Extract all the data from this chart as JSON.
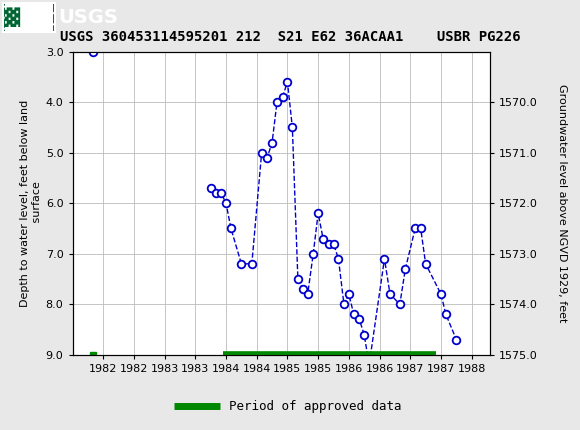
{
  "title": "USGS 360453114595201 212  S21 E62 36ACAA1    USBR PG226",
  "ylabel_left": "Depth to water level, feet below land\n surface",
  "ylabel_right": "Groundwater level above NGVD 1929, feet",
  "background_color": "#e8e8e8",
  "plot_bg_color": "#ffffff",
  "line_color": "#0000cc",
  "marker_color": "#0000cc",
  "ylim_left": [
    3.0,
    9.0
  ],
  "ylim_right": [
    1575.0,
    1569.0
  ],
  "xlim": [
    1981.5,
    1988.3
  ],
  "yticks_left": [
    3.0,
    4.0,
    5.0,
    6.0,
    7.0,
    8.0,
    9.0
  ],
  "yticks_right": [
    1575.0,
    1574.0,
    1573.0,
    1572.0,
    1571.0,
    1570.0
  ],
  "xticks": [
    1982,
    1982.5,
    1983,
    1983.5,
    1984,
    1984.5,
    1985,
    1985.5,
    1986,
    1986.5,
    1987,
    1987.5,
    1988
  ],
  "xtick_labels": [
    "1982",
    "1982",
    "1983",
    "1983",
    "1984",
    "1984",
    "1985",
    "1985",
    "1986",
    "1986",
    "1987",
    "1987",
    "1988"
  ],
  "segment1_x": [
    1981.83
  ],
  "segment1_y": [
    3.0
  ],
  "segment2_x": [
    1983.75,
    1983.83,
    1983.92,
    1984.0,
    1984.08,
    1984.25,
    1984.42,
    1984.58,
    1984.67,
    1984.75,
    1984.83,
    1984.92,
    1985.0,
    1985.08,
    1985.17,
    1985.25,
    1985.33,
    1985.42,
    1985.5,
    1985.58,
    1985.67,
    1985.75,
    1985.83,
    1985.92,
    1986.0,
    1986.08,
    1986.17,
    1986.25,
    1986.33,
    1986.58,
    1986.67,
    1986.83,
    1986.92,
    1987.08,
    1987.17,
    1987.25,
    1987.5,
    1987.58,
    1987.75
  ],
  "segment2_y": [
    5.7,
    5.8,
    5.8,
    6.0,
    6.5,
    7.2,
    7.2,
    5.0,
    5.1,
    4.8,
    4.0,
    3.9,
    3.6,
    4.5,
    7.5,
    7.7,
    7.8,
    7.0,
    6.2,
    6.7,
    6.8,
    6.8,
    7.1,
    8.0,
    7.8,
    8.2,
    8.3,
    8.6,
    9.2,
    7.1,
    7.8,
    8.0,
    7.3,
    6.5,
    6.5,
    7.2,
    7.8,
    8.2,
    8.7
  ],
  "approved_x_start": 1983.95,
  "approved_x_end": 1987.42,
  "approved_dot_x": 1981.83,
  "approved_color": "#008800",
  "legend_label": "Period of approved data",
  "usgs_header_color": "#006633",
  "header_text_color": "#ffffff",
  "title_fontsize": 10,
  "tick_fontsize": 8,
  "ylabel_fontsize": 8
}
